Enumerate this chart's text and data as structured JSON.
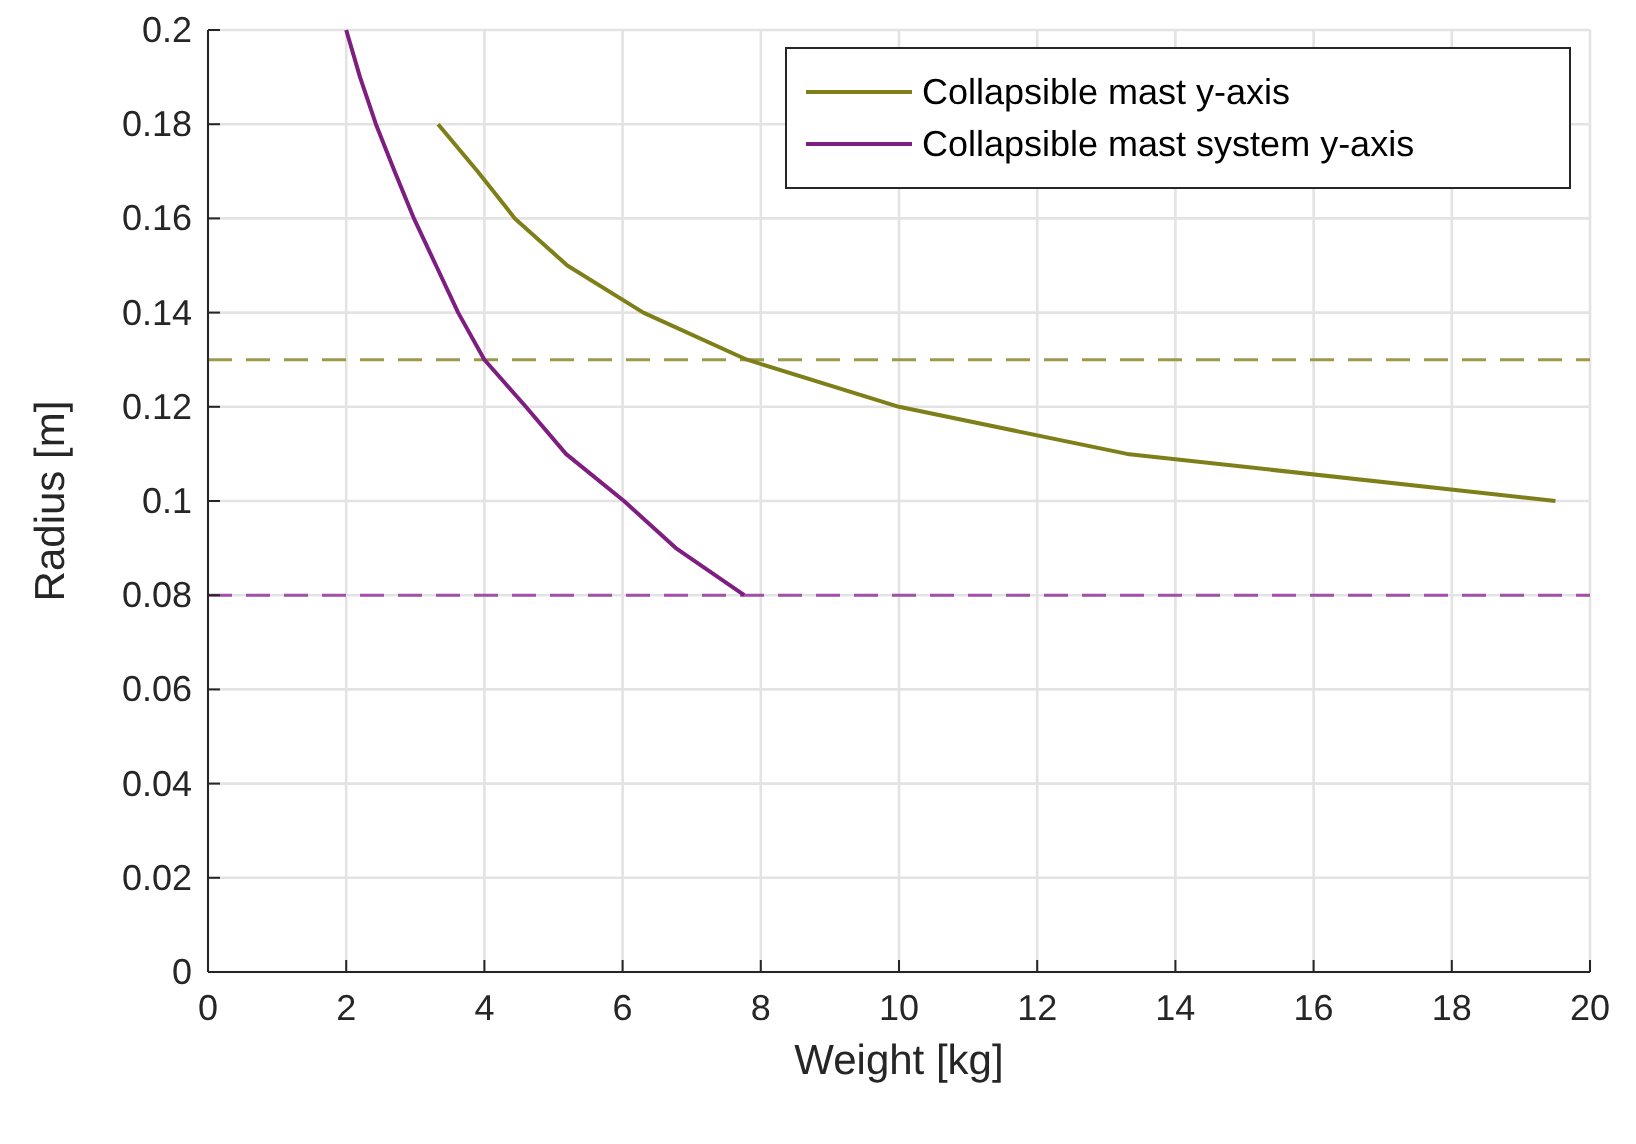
{
  "chart_data": {
    "type": "line",
    "xlabel": "Weight [kg]",
    "ylabel": "Radius [m]",
    "xlim": [
      0,
      20
    ],
    "xticks": [
      0,
      2,
      4,
      6,
      8,
      10,
      12,
      14,
      16,
      18,
      20
    ],
    "ylim": [
      0,
      0.2
    ],
    "yticks": [
      0,
      0.02,
      0.04,
      0.06,
      0.08,
      0.1,
      0.12,
      0.14,
      0.16,
      0.18,
      0.2
    ],
    "grid": true,
    "legend": "top right",
    "line_style": "solid",
    "series": [
      {
        "name": "Collapsible mast y-axis",
        "color": "#7f7f1a",
        "x": [
          3.33,
          3.9,
          4.44,
          5.2,
          6.3,
          7.8,
          10,
          13.3,
          19.5
        ],
        "values": [
          0.18,
          0.17,
          0.16,
          0.15,
          0.14,
          0.13,
          0.12,
          0.11,
          0.1
        ]
      },
      {
        "name": "Collapsible mast system y-axis",
        "color": "#7e1e80",
        "x": [
          2,
          2.2,
          2.43,
          2.7,
          2.98,
          3.3,
          3.62,
          4,
          4.6,
          5.18,
          6.02,
          6.77,
          7.76
        ],
        "values": [
          0.2,
          0.19,
          0.18,
          0.17,
          0.16,
          0.15,
          0.14,
          0.13,
          0.12,
          0.11,
          0.1,
          0.09,
          0.08
        ]
      }
    ],
    "ref_lines": [
      {
        "axis": "y",
        "value": 0.13,
        "color": "#9a9a4a",
        "line_style": "dashed"
      },
      {
        "axis": "y",
        "value": 0.08,
        "color": "#a050a8",
        "line_style": "dashed"
      }
    ]
  }
}
